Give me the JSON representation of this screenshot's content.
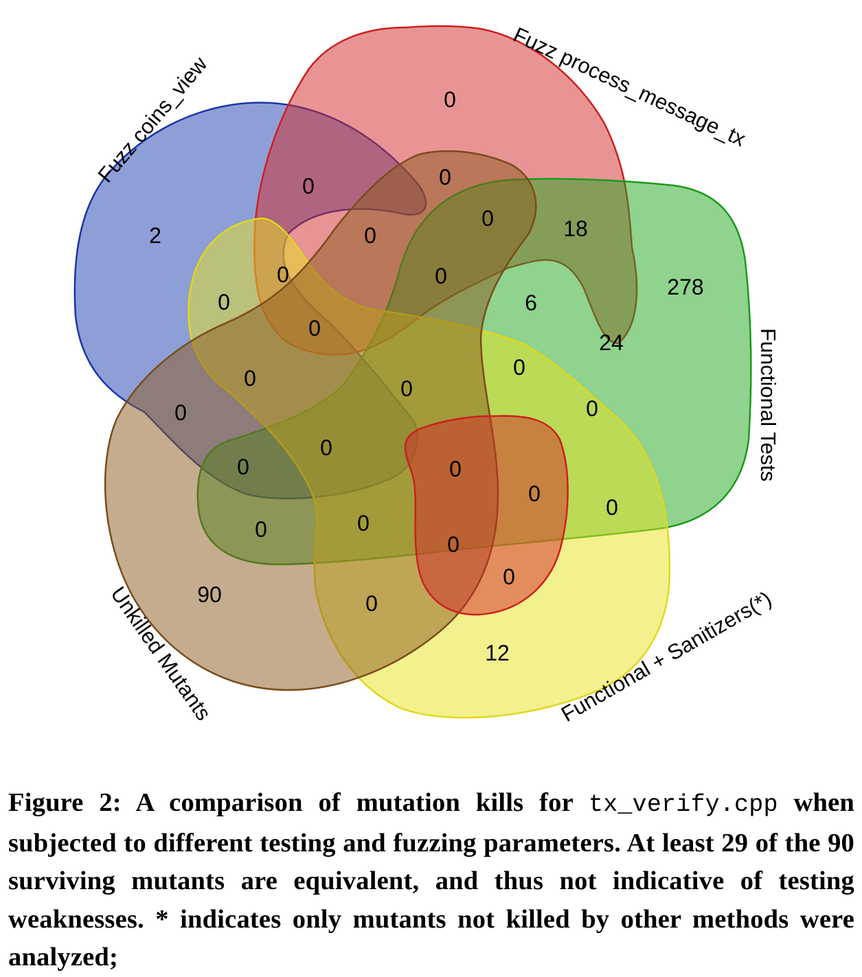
{
  "sets": [
    {
      "id": "coins",
      "name": "Fuzz coins_view",
      "fill": "#1e3fb0",
      "stroke": "#1a35a8"
    },
    {
      "id": "process",
      "name": "Fuzz process_message_tx",
      "fill": "#d42a2a",
      "stroke": "#cc1f1f"
    },
    {
      "id": "functional",
      "name": "Functional Tests",
      "fill": "#1fa81f",
      "stroke": "#1a9a1a"
    },
    {
      "id": "sanitizers",
      "name": "Functional + Sanitizers(*)",
      "fill": "#e8e21e",
      "stroke": "#e0d81a"
    },
    {
      "id": "unkilled",
      "name": "Unkilled Mutants",
      "fill": "#8b5a1e",
      "stroke": "#7a4c1a"
    }
  ],
  "regions": [
    {
      "key": "coins_only",
      "value": "2"
    },
    {
      "key": "process_only",
      "value": "0"
    },
    {
      "key": "functional_only",
      "value": "278"
    },
    {
      "key": "sanitizers_only",
      "value": "12"
    },
    {
      "key": "unkilled_only",
      "value": "90"
    },
    {
      "key": "r1",
      "value": "0"
    },
    {
      "key": "r2",
      "value": "0"
    },
    {
      "key": "r3",
      "value": "0"
    },
    {
      "key": "r4",
      "value": "18"
    },
    {
      "key": "r5",
      "value": "0"
    },
    {
      "key": "r6",
      "value": "0"
    },
    {
      "key": "r7",
      "value": "0"
    },
    {
      "key": "r8",
      "value": "6"
    },
    {
      "key": "r9",
      "value": "0"
    },
    {
      "key": "r10",
      "value": "24"
    },
    {
      "key": "r11",
      "value": "0"
    },
    {
      "key": "r12",
      "value": "0"
    },
    {
      "key": "r13",
      "value": "0"
    },
    {
      "key": "r14",
      "value": "0"
    },
    {
      "key": "r15",
      "value": "0"
    },
    {
      "key": "r16",
      "value": "0"
    },
    {
      "key": "r17",
      "value": "0"
    },
    {
      "key": "r18",
      "value": "0"
    },
    {
      "key": "r19",
      "value": "0"
    },
    {
      "key": "r20",
      "value": "0"
    },
    {
      "key": "r21",
      "value": "0"
    },
    {
      "key": "r22",
      "value": "0"
    },
    {
      "key": "r23",
      "value": "0"
    },
    {
      "key": "r24",
      "value": "0"
    },
    {
      "key": "r25",
      "value": "0"
    },
    {
      "key": "r26",
      "value": "0"
    }
  ],
  "caption": {
    "label": "Figure 2:",
    "text_before": " A comparison of mutation kills for ",
    "code": "tx_verify.cpp",
    "text_after": " when subjected to different testing and fuzzing parameters. At least 29 of the 90 surviving mutants are equivalent, and thus not indicative of testing weaknesses. * indicates only mutants not killed by other methods were analyzed;"
  }
}
